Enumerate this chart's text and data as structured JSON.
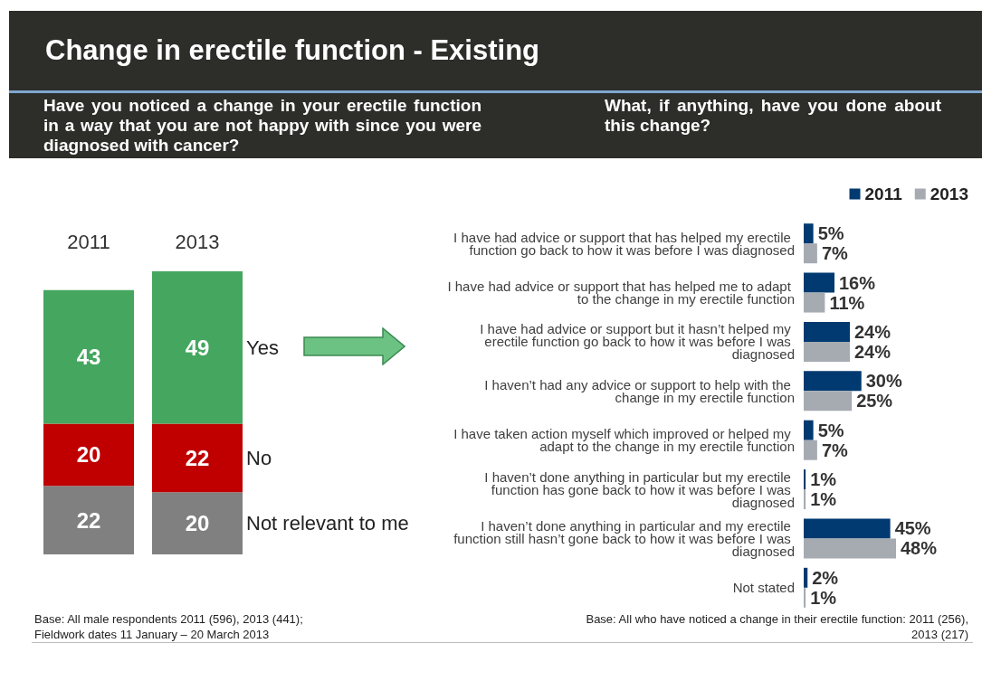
{
  "chart_data": [
    {
      "type": "bar",
      "title": "Change in erectile function - Existing",
      "subtitle": "Have you noticed a change in your erectile function in a way that you are not happy with since you were diagnosed with cancer?",
      "categories": [
        "2011",
        "2013"
      ],
      "stacked": true,
      "data_labels": true,
      "series": [
        {
          "name": "Not relevant to me",
          "color": "#808080",
          "values": [
            22,
            20
          ]
        },
        {
          "name": "No",
          "color": "#c00000",
          "values": [
            20,
            22
          ]
        },
        {
          "name": "Yes",
          "color": "#45a75f",
          "values": [
            43,
            49
          ]
        }
      ],
      "annotations": [
        "Base:   All male respondents 2011 (596), 2013 (441);\nFieldwork dates 11 January – 20 March 2013"
      ]
    },
    {
      "type": "bar",
      "orientation": "horizontal",
      "subtitle": "What, if anything, have you done about this change?",
      "legend": "top right",
      "categories": [
        "I have had advice or support that has helped my erectile function go back to how it was before I was diagnosed",
        "I have had advice or support that has helped me to adapt to the change in my erectile function",
        "I have had advice or support but it hasn’t helped my erectile function go back to how it was before I was diagnosed",
        "I haven’t had any advice or support to help with the change in my erectile function",
        "I have taken action myself which improved or helped my adapt to the change in my erectile function",
        "I haven’t done anything in particular but my erectile function has gone back to how it was before I was diagnosed",
        "I haven’t done anything in particular and my erectile function still hasn’t gone back to how it was before I was diagnosed",
        "Not stated"
      ],
      "series": [
        {
          "name": "2011",
          "color": "#003a70",
          "values": [
            5,
            16,
            24,
            30,
            5,
            1,
            45,
            2
          ],
          "value_labels": [
            "5%",
            "16%",
            "24%",
            "30%",
            "5%",
            "1%",
            "45%",
            "2%"
          ]
        },
        {
          "name": "2013",
          "color": "#a6abb2",
          "values": [
            7,
            11,
            24,
            25,
            7,
            1,
            48,
            1
          ],
          "value_labels": [
            "7%",
            "11%",
            "24%",
            "25%",
            "7%",
            "1%",
            "48%",
            "1%"
          ]
        }
      ],
      "annotations": [
        "Base:   All who have noticed a change in their erectile function: 2011 (256),\n2013 (217)"
      ]
    }
  ]
}
